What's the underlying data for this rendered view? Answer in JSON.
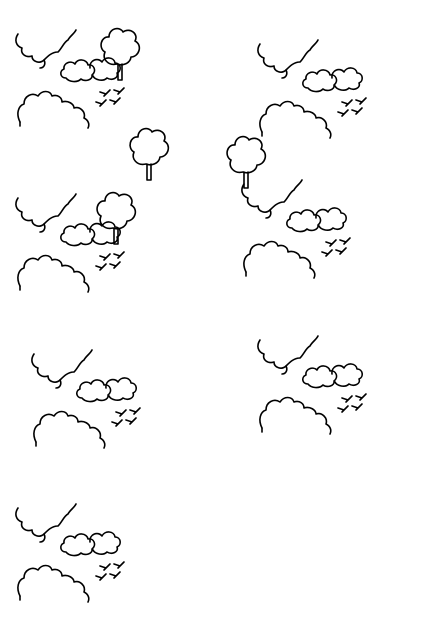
{
  "ink_color": "#000000",
  "background_color": "#ffffff",
  "icons": {
    "cluster": "landscape-cluster-icon",
    "tree": "tree-icon",
    "bush": "bush-icon",
    "cloud": "cloud-icon",
    "birds": "birds-icon"
  },
  "clusters": [
    {
      "name": "landscape-cluster-1",
      "has_tree": true
    },
    {
      "name": "landscape-cluster-2",
      "has_tree": false
    },
    {
      "name": "landscape-cluster-3",
      "has_tree": true
    },
    {
      "name": "landscape-cluster-4",
      "has_tree": false
    },
    {
      "name": "landscape-cluster-5",
      "has_tree": false
    },
    {
      "name": "landscape-cluster-6",
      "has_tree": false
    },
    {
      "name": "landscape-cluster-7",
      "has_tree": false
    }
  ],
  "standalone_trees": [
    {
      "name": "standalone-tree-1"
    },
    {
      "name": "standalone-tree-2"
    }
  ]
}
